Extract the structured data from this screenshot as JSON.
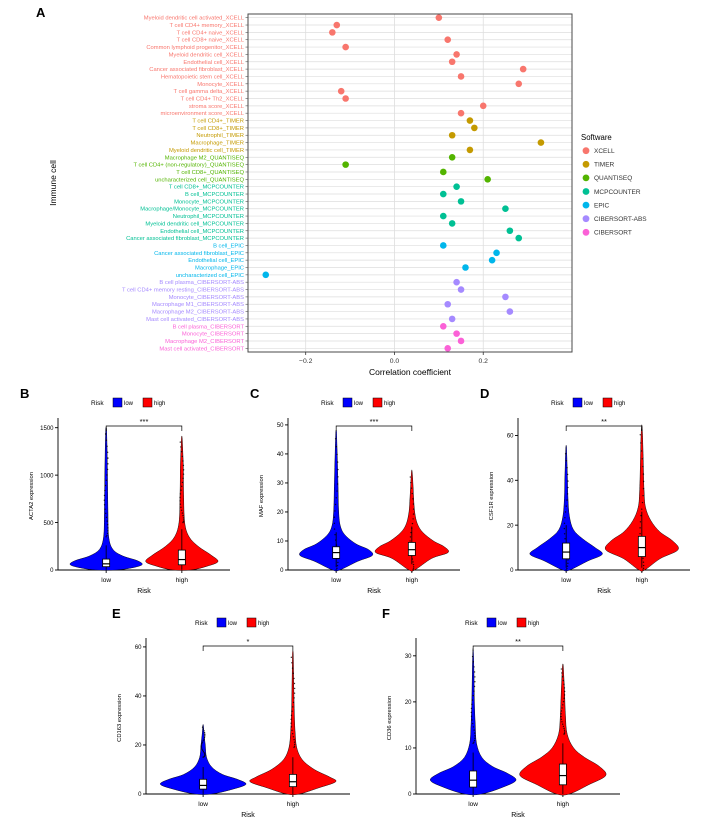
{
  "chart_data": [
    {
      "id": "A",
      "label": "A",
      "type": "scatter",
      "xlabel": "Correlation coefficient",
      "ylabel": "Immune cell",
      "xticks": [
        -0.2,
        0.0,
        0.2
      ],
      "xtick_labels": [
        "−0.2",
        "0.0",
        "0.2"
      ],
      "xlim": [
        -0.33,
        0.4
      ],
      "legend_title": "Software",
      "legend_position": "right",
      "software": [
        {
          "name": "XCELL",
          "color": "#F8766D"
        },
        {
          "name": "TIMER",
          "color": "#C49A00"
        },
        {
          "name": "QUANTISEQ",
          "color": "#53B400"
        },
        {
          "name": "MCPCOUNTER",
          "color": "#00C094"
        },
        {
          "name": "EPIC",
          "color": "#00B6EB"
        },
        {
          "name": "CIBERSORT-ABS",
          "color": "#A58AFF"
        },
        {
          "name": "CIBERSORT",
          "color": "#FB61D7"
        }
      ],
      "rows": [
        {
          "label": "Myeloid dendritic cell activated_XCELL",
          "software": "XCELL",
          "value": 0.1
        },
        {
          "label": "T cell CD4+ memory_XCELL",
          "software": "XCELL",
          "value": -0.13
        },
        {
          "label": "T cell CD4+ naive_XCELL",
          "software": "XCELL",
          "value": -0.14
        },
        {
          "label": "T cell CD8+ naive_XCELL",
          "software": "XCELL",
          "value": 0.12
        },
        {
          "label": "Common lymphoid progenitor_XCELL",
          "software": "XCELL",
          "value": -0.11
        },
        {
          "label": "Myeloid dendritic cell_XCELL",
          "software": "XCELL",
          "value": 0.14
        },
        {
          "label": "Endothelial cell_XCELL",
          "software": "XCELL",
          "value": 0.13
        },
        {
          "label": "Cancer associated fibroblast_XCELL",
          "software": "XCELL",
          "value": 0.29
        },
        {
          "label": "Hematopoietic stem cell_XCELL",
          "software": "XCELL",
          "value": 0.15
        },
        {
          "label": "Monocyte_XCELL",
          "software": "XCELL",
          "value": 0.28
        },
        {
          "label": "T cell gamma delta_XCELL",
          "software": "XCELL",
          "value": -0.12
        },
        {
          "label": "T cell CD4+ Th2_XCELL",
          "software": "XCELL",
          "value": -0.11
        },
        {
          "label": "stroma score_XCELL",
          "software": "XCELL",
          "value": 0.2
        },
        {
          "label": "microenvironment score_XCELL",
          "software": "XCELL",
          "value": 0.15
        },
        {
          "label": "T cell CD4+_TIMER",
          "software": "TIMER",
          "value": 0.17
        },
        {
          "label": "T cell CD8+_TIMER",
          "software": "TIMER",
          "value": 0.18
        },
        {
          "label": "Neutrophil_TIMER",
          "software": "TIMER",
          "value": 0.13
        },
        {
          "label": "Macrophage_TIMER",
          "software": "TIMER",
          "value": 0.33
        },
        {
          "label": "Myeloid dendritic cell_TIMER",
          "software": "TIMER",
          "value": 0.17
        },
        {
          "label": "Macrophage M2_QUANTISEQ",
          "software": "QUANTISEQ",
          "value": 0.13
        },
        {
          "label": "T cell CD4+ (non-regulatory)_QUANTISEQ",
          "software": "QUANTISEQ",
          "value": -0.11
        },
        {
          "label": "T cell CD8+_QUANTISEQ",
          "software": "QUANTISEQ",
          "value": 0.11
        },
        {
          "label": "uncharacterized cell_QUANTISEQ",
          "software": "QUANTISEQ",
          "value": 0.21
        },
        {
          "label": "T cell CD8+_MCPCOUNTER",
          "software": "MCPCOUNTER",
          "value": 0.14
        },
        {
          "label": "B cell_MCPCOUNTER",
          "software": "MCPCOUNTER",
          "value": 0.11
        },
        {
          "label": "Monocyte_MCPCOUNTER",
          "software": "MCPCOUNTER",
          "value": 0.15
        },
        {
          "label": "Macrophage/Monocyte_MCPCOUNTER",
          "software": "MCPCOUNTER",
          "value": 0.25
        },
        {
          "label": "Neutrophil_MCPCOUNTER",
          "software": "MCPCOUNTER",
          "value": 0.11
        },
        {
          "label": "Myeloid dendritic cell_MCPCOUNTER",
          "software": "MCPCOUNTER",
          "value": 0.13
        },
        {
          "label": "Endothelial cell_MCPCOUNTER",
          "software": "MCPCOUNTER",
          "value": 0.26
        },
        {
          "label": "Cancer associated fibroblast_MCPCOUNTER",
          "software": "MCPCOUNTER",
          "value": 0.28
        },
        {
          "label": "B cell_EPIC",
          "software": "EPIC",
          "value": 0.11
        },
        {
          "label": "Cancer associated fibroblast_EPIC",
          "software": "EPIC",
          "value": 0.23
        },
        {
          "label": "Endothelial cell_EPIC",
          "software": "EPIC",
          "value": 0.22
        },
        {
          "label": "Macrophage_EPIC",
          "software": "EPIC",
          "value": 0.16
        },
        {
          "label": "uncharacterized cell_EPIC",
          "software": "EPIC",
          "value": -0.29
        },
        {
          "label": "B cell plasma_CIBERSORT-ABS",
          "software": "CIBERSORT-ABS",
          "value": 0.14
        },
        {
          "label": "T cell CD4+ memory resting_CIBERSORT-ABS",
          "software": "CIBERSORT-ABS",
          "value": 0.15
        },
        {
          "label": "Monocyte_CIBERSORT-ABS",
          "software": "CIBERSORT-ABS",
          "value": 0.25
        },
        {
          "label": "Macrophage M1_CIBERSORT-ABS",
          "software": "CIBERSORT-ABS",
          "value": 0.12
        },
        {
          "label": "Macrophage M2_CIBERSORT-ABS",
          "software": "CIBERSORT-ABS",
          "value": 0.26
        },
        {
          "label": "Mast cell activated_CIBERSORT-ABS",
          "software": "CIBERSORT-ABS",
          "value": 0.13
        },
        {
          "label": "B cell plasma_CIBERSORT",
          "software": "CIBERSORT",
          "value": 0.11
        },
        {
          "label": "Monocyte_CIBERSORT",
          "software": "CIBERSORT",
          "value": 0.14
        },
        {
          "label": "Macrophage M2_CIBERSORT",
          "software": "CIBERSORT",
          "value": 0.15
        },
        {
          "label": "Mast cell activated_CIBERSORT",
          "software": "CIBERSORT",
          "value": 0.12
        }
      ]
    },
    {
      "id": "B",
      "label": "B",
      "type": "violin",
      "ylabel": "ACTA2 expression",
      "xlabel": "Risk",
      "legend_title": "Risk",
      "categories": [
        "low",
        "high"
      ],
      "yticks": [
        0,
        500,
        1000,
        1500
      ],
      "ylim": [
        0,
        1560
      ],
      "significance": "***",
      "series": [
        {
          "name": "low",
          "color": "#0000FF",
          "box": {
            "q1": 35,
            "median": 65,
            "q3": 115,
            "whisker_low": 2,
            "whisker_high": 260
          },
          "density": [
            [
              0,
              0.3
            ],
            [
              30,
              0.8
            ],
            [
              60,
              1.0
            ],
            [
              100,
              0.85
            ],
            [
              150,
              0.45
            ],
            [
              220,
              0.18
            ],
            [
              350,
              0.07
            ],
            [
              600,
              0.05
            ],
            [
              900,
              0.04
            ],
            [
              1200,
              0.03
            ],
            [
              1450,
              0.015
            ],
            [
              1500,
              0
            ]
          ]
        },
        {
          "name": "high",
          "color": "#FF0000",
          "box": {
            "q1": 55,
            "median": 110,
            "q3": 210,
            "whisker_low": 3,
            "whisker_high": 430
          },
          "density": [
            [
              0,
              0.25
            ],
            [
              40,
              0.7
            ],
            [
              90,
              1.0
            ],
            [
              160,
              0.8
            ],
            [
              250,
              0.45
            ],
            [
              350,
              0.2
            ],
            [
              500,
              0.08
            ],
            [
              800,
              0.05
            ],
            [
              1100,
              0.04
            ],
            [
              1300,
              0.02
            ],
            [
              1400,
              0
            ]
          ]
        }
      ]
    },
    {
      "id": "C",
      "label": "C",
      "type": "violin",
      "ylabel": "MAF expression",
      "xlabel": "Risk",
      "legend_title": "Risk",
      "categories": [
        "low",
        "high"
      ],
      "yticks": [
        0,
        10,
        20,
        30,
        40,
        50
      ],
      "ylim": [
        0,
        51
      ],
      "significance": "***",
      "series": [
        {
          "name": "low",
          "color": "#0000FF",
          "box": {
            "q1": 4,
            "median": 6,
            "q3": 8,
            "whisker_low": 1,
            "whisker_high": 13
          },
          "density": [
            [
              0,
              0.1
            ],
            [
              3,
              0.6
            ],
            [
              5,
              1.0
            ],
            [
              7,
              0.9
            ],
            [
              9,
              0.55
            ],
            [
              12,
              0.25
            ],
            [
              15,
              0.12
            ],
            [
              20,
              0.07
            ],
            [
              30,
              0.05
            ],
            [
              40,
              0.03
            ],
            [
              46,
              0.015
            ],
            [
              48,
              0
            ]
          ]
        },
        {
          "name": "high",
          "color": "#FF0000",
          "box": {
            "q1": 5,
            "median": 7,
            "q3": 9.5,
            "whisker_low": 2,
            "whisker_high": 15
          },
          "density": [
            [
              0,
              0.08
            ],
            [
              4,
              0.55
            ],
            [
              6,
              1.0
            ],
            [
              8,
              0.9
            ],
            [
              10,
              0.6
            ],
            [
              13,
              0.3
            ],
            [
              16,
              0.15
            ],
            [
              20,
              0.08
            ],
            [
              25,
              0.05
            ],
            [
              30,
              0.03
            ],
            [
              34,
              0
            ]
          ]
        }
      ]
    },
    {
      "id": "D",
      "label": "D",
      "type": "violin",
      "ylabel": "CSF1R expression",
      "xlabel": "Risk",
      "legend_title": "Risk",
      "categories": [
        "low",
        "high"
      ],
      "yticks": [
        0,
        20,
        40,
        60
      ],
      "ylim": [
        0,
        66
      ],
      "significance": "**",
      "series": [
        {
          "name": "low",
          "color": "#0000FF",
          "box": {
            "q1": 5,
            "median": 8,
            "q3": 12,
            "whisker_low": 1,
            "whisker_high": 20
          },
          "density": [
            [
              0,
              0.1
            ],
            [
              4,
              0.6
            ],
            [
              7,
              1.0
            ],
            [
              10,
              0.8
            ],
            [
              14,
              0.45
            ],
            [
              18,
              0.2
            ],
            [
              24,
              0.09
            ],
            [
              32,
              0.05
            ],
            [
              42,
              0.035
            ],
            [
              50,
              0.02
            ],
            [
              55,
              0
            ]
          ]
        },
        {
          "name": "high",
          "color": "#FF0000",
          "box": {
            "q1": 6,
            "median": 10,
            "q3": 15,
            "whisker_low": 1,
            "whisker_high": 26
          },
          "density": [
            [
              0,
              0.08
            ],
            [
              5,
              0.5
            ],
            [
              9,
              1.0
            ],
            [
              13,
              0.85
            ],
            [
              17,
              0.5
            ],
            [
              22,
              0.25
            ],
            [
              28,
              0.1
            ],
            [
              36,
              0.06
            ],
            [
              48,
              0.04
            ],
            [
              58,
              0.025
            ],
            [
              64,
              0
            ]
          ]
        }
      ]
    },
    {
      "id": "E",
      "label": "E",
      "type": "violin",
      "ylabel": "CD163 expression",
      "xlabel": "Risk",
      "legend_title": "Risk",
      "categories": [
        "low",
        "high"
      ],
      "yticks": [
        0,
        20,
        40,
        60
      ],
      "ylim": [
        0,
        62
      ],
      "significance": "*",
      "series": [
        {
          "name": "low",
          "color": "#0000FF",
          "box": {
            "q1": 2,
            "median": 3.5,
            "q3": 6,
            "whisker_low": 0,
            "whisker_high": 11
          },
          "density": [
            [
              0,
              0.2
            ],
            [
              2,
              0.7
            ],
            [
              4,
              1.0
            ],
            [
              6,
              0.8
            ],
            [
              8,
              0.45
            ],
            [
              11,
              0.2
            ],
            [
              15,
              0.08
            ],
            [
              20,
              0.05
            ],
            [
              25,
              0.02
            ],
            [
              28,
              0
            ]
          ]
        },
        {
          "name": "high",
          "color": "#FF0000",
          "box": {
            "q1": 3,
            "median": 5,
            "q3": 8,
            "whisker_low": 0,
            "whisker_high": 15
          },
          "density": [
            [
              0,
              0.15
            ],
            [
              2.5,
              0.6
            ],
            [
              5,
              1.0
            ],
            [
              7,
              0.85
            ],
            [
              10,
              0.5
            ],
            [
              14,
              0.22
            ],
            [
              19,
              0.09
            ],
            [
              26,
              0.05
            ],
            [
              35,
              0.03
            ],
            [
              45,
              0.02
            ],
            [
              55,
              0.012
            ],
            [
              58,
              0
            ]
          ]
        }
      ]
    },
    {
      "id": "F",
      "label": "F",
      "type": "violin",
      "ylabel": "CD36 expression",
      "xlabel": "Risk",
      "legend_title": "Risk",
      "categories": [
        "low",
        "high"
      ],
      "yticks": [
        0,
        10,
        20,
        30
      ],
      "ylim": [
        0,
        33
      ],
      "significance": "**",
      "series": [
        {
          "name": "low",
          "color": "#0000FF",
          "box": {
            "q1": 1.5,
            "median": 3,
            "q3": 5,
            "whisker_low": 0,
            "whisker_high": 9
          },
          "density": [
            [
              0,
              0.2
            ],
            [
              1.5,
              0.7
            ],
            [
              3,
              1.0
            ],
            [
              4.5,
              0.8
            ],
            [
              6,
              0.45
            ],
            [
              8,
              0.2
            ],
            [
              11,
              0.08
            ],
            [
              15,
              0.05
            ],
            [
              20,
              0.03
            ],
            [
              26,
              0.02
            ],
            [
              31,
              0
            ]
          ]
        },
        {
          "name": "high",
          "color": "#FF0000",
          "box": {
            "q1": 2,
            "median": 4,
            "q3": 6.5,
            "whisker_low": 0,
            "whisker_high": 11
          },
          "density": [
            [
              0,
              0.15
            ],
            [
              2,
              0.6
            ],
            [
              4,
              1.0
            ],
            [
              6,
              0.85
            ],
            [
              8,
              0.5
            ],
            [
              10,
              0.25
            ],
            [
              13,
              0.1
            ],
            [
              17,
              0.06
            ],
            [
              22,
              0.04
            ],
            [
              26,
              0.02
            ],
            [
              28,
              0
            ]
          ]
        }
      ]
    }
  ]
}
